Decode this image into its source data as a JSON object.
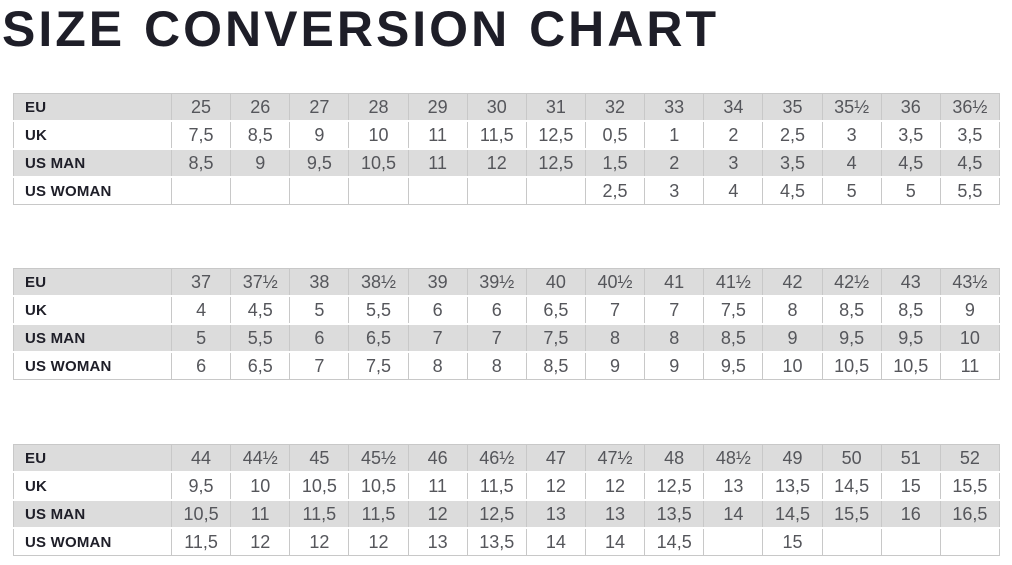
{
  "title": "SIZE CONVERSION CHART",
  "colors": {
    "shaded_row": "#dcdcdc",
    "plain_row": "#ffffff",
    "border": "#c8c8c8",
    "label_text": "#1e1e28",
    "value_text": "#55565b",
    "title_text": "#1e1e28"
  },
  "tables": [
    {
      "name": "sizes-eu-25-to-36half",
      "rows": [
        {
          "label": "EU",
          "values": [
            "25",
            "26",
            "27",
            "28",
            "29",
            "30",
            "31",
            "32",
            "33",
            "34",
            "35",
            "35½",
            "36",
            "36½"
          ]
        },
        {
          "label": "UK",
          "values": [
            "7,5",
            "8,5",
            "9",
            "10",
            "11",
            "11,5",
            "12,5",
            "0,5",
            "1",
            "2",
            "2,5",
            "3",
            "3,5",
            "3,5"
          ]
        },
        {
          "label": "US MAN",
          "values": [
            "8,5",
            "9",
            "9,5",
            "10,5",
            "11",
            "12",
            "12,5",
            "1,5",
            "2",
            "3",
            "3,5",
            "4",
            "4,5",
            "4,5"
          ]
        },
        {
          "label": "US WOMAN",
          "values": [
            "",
            "",
            "",
            "",
            "",
            "",
            "",
            "2,5",
            "3",
            "4",
            "4,5",
            "5",
            "5",
            "5,5"
          ]
        }
      ]
    },
    {
      "name": "sizes-eu-37-to-43half",
      "rows": [
        {
          "label": "EU",
          "values": [
            "37",
            "37½",
            "38",
            "38½",
            "39",
            "39½",
            "40",
            "40½",
            "41",
            "41½",
            "42",
            "42½",
            "43",
            "43½"
          ]
        },
        {
          "label": "UK",
          "values": [
            "4",
            "4,5",
            "5",
            "5,5",
            "6",
            "6",
            "6,5",
            "7",
            "7",
            "7,5",
            "8",
            "8,5",
            "8,5",
            "9"
          ]
        },
        {
          "label": "US MAN",
          "values": [
            "5",
            "5,5",
            "6",
            "6,5",
            "7",
            "7",
            "7,5",
            "8",
            "8",
            "8,5",
            "9",
            "9,5",
            "9,5",
            "10"
          ]
        },
        {
          "label": "US WOMAN",
          "values": [
            "6",
            "6,5",
            "7",
            "7,5",
            "8",
            "8",
            "8,5",
            "9",
            "9",
            "9,5",
            "10",
            "10,5",
            "10,5",
            "11"
          ]
        }
      ]
    },
    {
      "name": "sizes-eu-44-to-52",
      "rows": [
        {
          "label": "EU",
          "values": [
            "44",
            "44½",
            "45",
            "45½",
            "46",
            "46½",
            "47",
            "47½",
            "48",
            "48½",
            "49",
            "50",
            "51",
            "52"
          ]
        },
        {
          "label": "UK",
          "values": [
            "9,5",
            "10",
            "10,5",
            "10,5",
            "11",
            "11,5",
            "12",
            "12",
            "12,5",
            "13",
            "13,5",
            "14,5",
            "15",
            "15,5"
          ]
        },
        {
          "label": "US MAN",
          "values": [
            "10,5",
            "11",
            "11,5",
            "11,5",
            "12",
            "12,5",
            "13",
            "13",
            "13,5",
            "14",
            "14,5",
            "15,5",
            "16",
            "16,5"
          ]
        },
        {
          "label": "US WOMAN",
          "values": [
            "11,5",
            "12",
            "12",
            "12",
            "13",
            "13,5",
            "14",
            "14",
            "14,5",
            "",
            "15",
            "",
            "",
            ""
          ]
        }
      ]
    }
  ]
}
